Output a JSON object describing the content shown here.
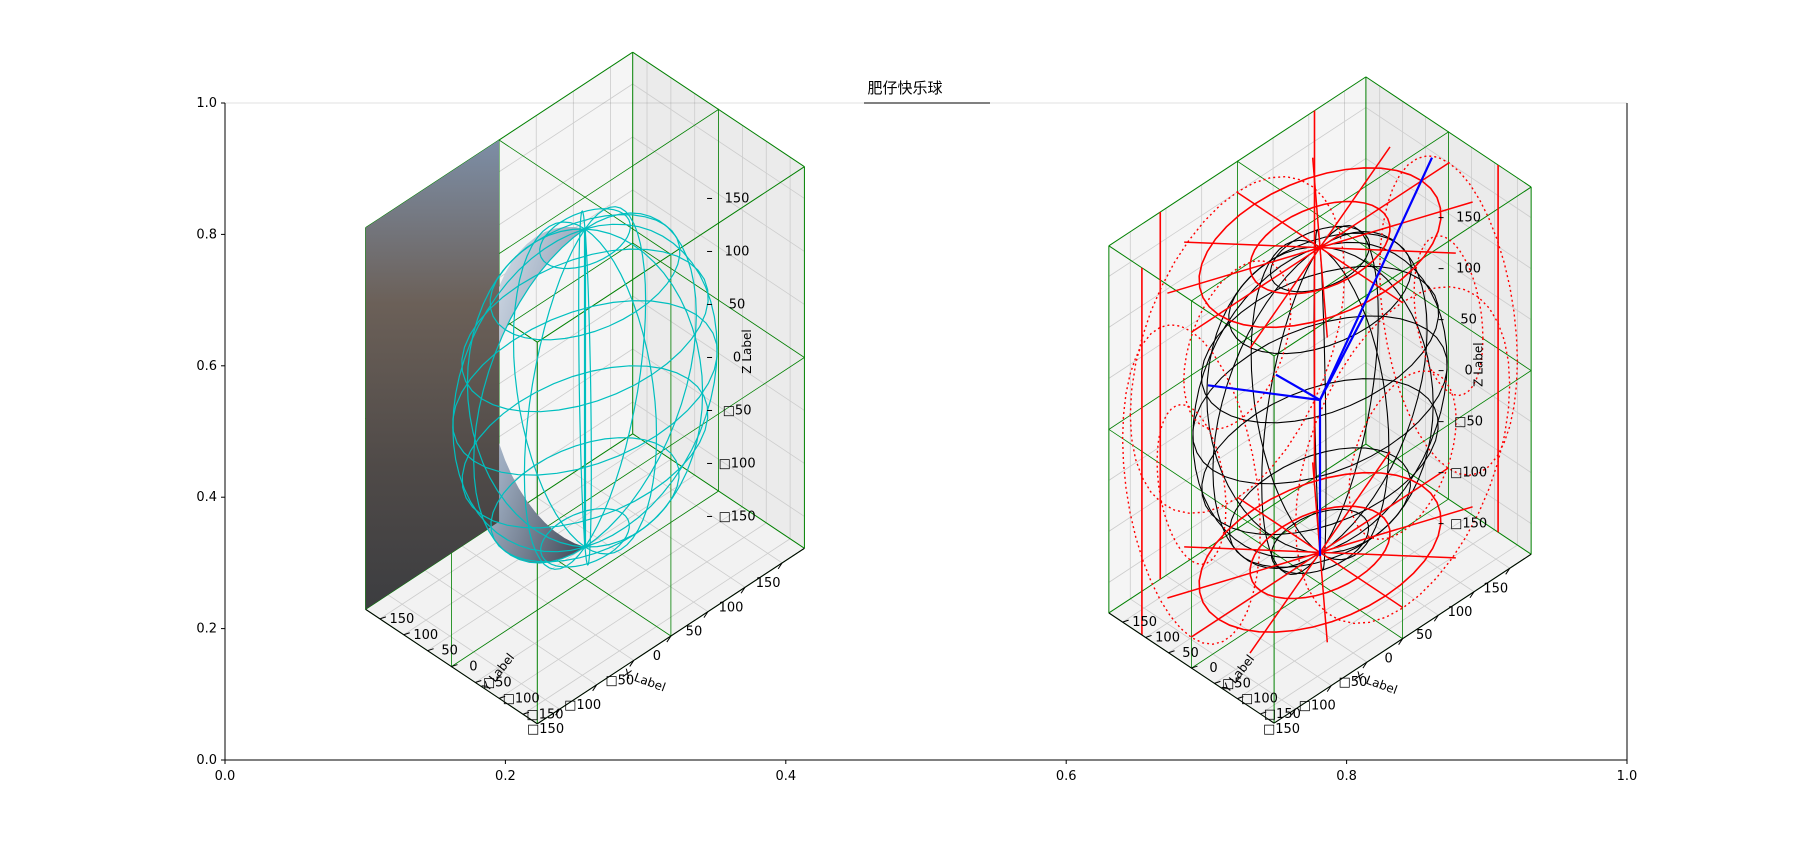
{
  "title": "肥仔快乐球",
  "chart_data": [
    {
      "type": "line",
      "role": "outer-2d-axes",
      "xlim": [
        0.0,
        1.0
      ],
      "ylim": [
        0.0,
        1.0
      ],
      "xticks": [
        "0.0",
        "0.2",
        "0.4",
        "0.6",
        "0.8",
        "1.0"
      ],
      "yticks": [
        "0.0",
        "0.2",
        "0.4",
        "0.6",
        "0.8",
        "1.0"
      ],
      "grid": false
    },
    {
      "type": "3d-surface",
      "role": "left-3d-panel",
      "xlabel": "X Label",
      "ylabel": "Y Label",
      "zlabel": "Z Label",
      "xticks": [
        "□150",
        "□100",
        "□50",
        "0",
        "50",
        "100",
        "150"
      ],
      "yticks": [
        "□150",
        "□100",
        "□50",
        "0",
        "50",
        "100",
        "150"
      ],
      "zticks": [
        "□150",
        "□100",
        "□50",
        "0",
        "50",
        "100",
        "150"
      ],
      "tick_values": [
        -150,
        -100,
        -50,
        0,
        50,
        100,
        150
      ],
      "xlim": [
        -180,
        180
      ],
      "ylim": [
        -180,
        180
      ],
      "zlim": [
        -180,
        180
      ],
      "sphere_radius": 150,
      "box_half_size": 180,
      "colors": {
        "wireframe": "#00bfbf",
        "box": "#008000",
        "pane": "#ebebeb",
        "grid": "#cccccc"
      }
    },
    {
      "type": "3d-wireframe",
      "role": "right-3d-panel",
      "xlabel": "X Label",
      "ylabel": "Y Label",
      "zlabel": "Z Label",
      "xticks": [
        "□150",
        "□100",
        "□50",
        "0",
        "50",
        "100",
        "150"
      ],
      "yticks": [
        "□150",
        "□100",
        "□50",
        "0",
        "50",
        "100",
        "150"
      ],
      "zticks": [
        "□150",
        "□100",
        "□50",
        "0",
        "50",
        "100",
        "150"
      ],
      "tick_values": [
        -150,
        -100,
        -50,
        0,
        50,
        100,
        150
      ],
      "xlim": [
        -180,
        180
      ],
      "ylim": [
        -180,
        180
      ],
      "zlim": [
        -180,
        180
      ],
      "sphere_radius": 150,
      "box_half_size": 180,
      "colors": {
        "sphere": "#000000",
        "projections": "#ff0000",
        "axes_lines": "#0000ff",
        "box": "#008000",
        "pane": "#ebebeb",
        "grid": "#cccccc"
      }
    }
  ]
}
